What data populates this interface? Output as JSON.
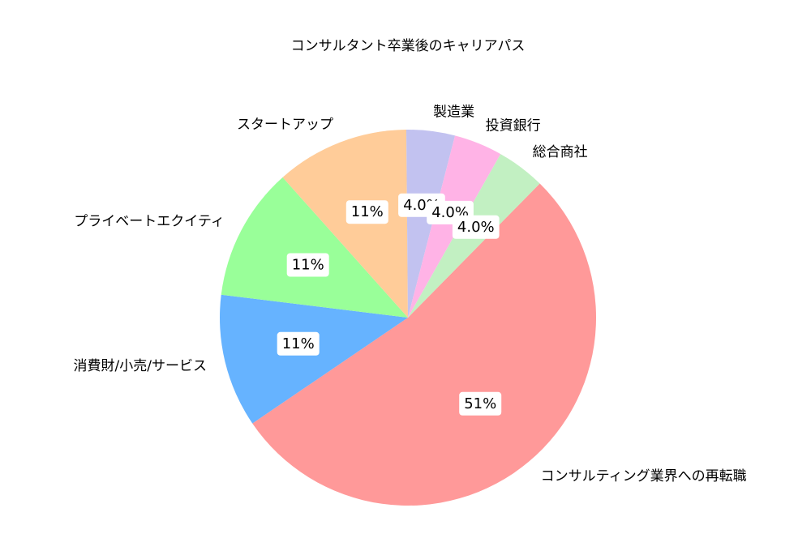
{
  "chart_data": {
    "type": "pie",
    "title": "コンサルタント卒業後のキャリアパス",
    "slices": [
      {
        "label": "コンサルティング業界への再転職",
        "value": 51,
        "pct_label": "51%",
        "color": "#ff9999"
      },
      {
        "label": "消費財/小売/サービス",
        "value": 11,
        "pct_label": "11%",
        "color": "#66b3ff"
      },
      {
        "label": "プライベートエクイティ",
        "value": 11,
        "pct_label": "11%",
        "color": "#99ff99"
      },
      {
        "label": "スタートアップ",
        "value": 11,
        "pct_label": "11%",
        "color": "#ffcc99"
      },
      {
        "label": "製造業",
        "value": 4.0,
        "pct_label": "4.0%",
        "color": "#c2c2f0"
      },
      {
        "label": "投資銀行",
        "value": 4.0,
        "pct_label": "4.0%",
        "color": "#ffb3e6"
      },
      {
        "label": "総合商社",
        "value": 4.0,
        "pct_label": "4.0%",
        "color": "#c2f0c2"
      }
    ]
  }
}
